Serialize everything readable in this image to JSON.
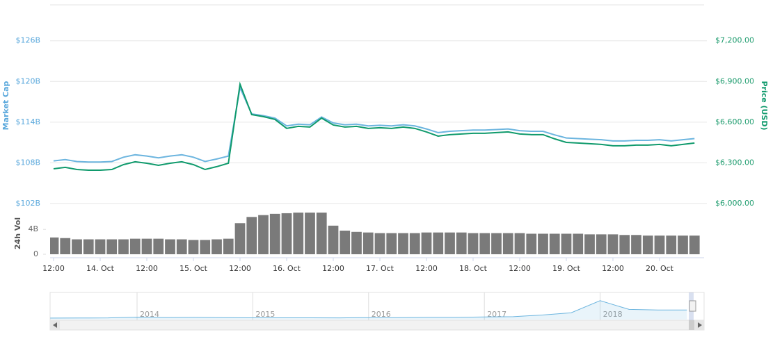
{
  "chart_data": [
    {
      "type": "line",
      "ylabel": "Market Cap",
      "y2label": "Price (USD)",
      "categories": [
        "12:00",
        null,
        null,
        null,
        "14. Oct",
        null,
        null,
        null,
        "12:00",
        null,
        null,
        null,
        "15. Oct",
        null,
        null,
        null,
        "12:00",
        null,
        null,
        null,
        "16. Oct",
        null,
        null,
        null,
        "12:00",
        null,
        null,
        null,
        "17. Oct",
        null,
        null,
        null,
        "12:00",
        null,
        null,
        null,
        "18. Oct",
        null,
        null,
        null,
        "12:00",
        null,
        null,
        null,
        "19. Oct",
        null,
        null,
        null,
        "12:00",
        null,
        null,
        null,
        "20. Oct",
        null,
        null,
        null
      ],
      "series": [
        {
          "name": "Market Cap",
          "color": "#6cb5df",
          "axis": "y",
          "values": [
            108.29,
            108.48,
            108.2,
            108.12,
            108.12,
            108.2,
            108.83,
            109.19,
            109.0,
            108.74,
            109.0,
            109.19,
            108.83,
            108.2,
            108.57,
            109.0,
            119.09,
            115.22,
            114.96,
            114.59,
            113.45,
            113.71,
            113.62,
            114.77,
            113.88,
            113.62,
            113.71,
            113.45,
            113.54,
            113.45,
            113.62,
            113.45,
            113.0,
            112.46,
            112.65,
            112.74,
            112.83,
            112.83,
            112.91,
            113.0,
            112.74,
            112.65,
            112.65,
            112.12,
            111.67,
            111.58,
            111.49,
            111.41,
            111.23,
            111.23,
            111.32,
            111.32,
            111.41,
            111.23,
            111.41,
            111.58
          ]
        },
        {
          "name": "Price (USD)",
          "color": "#0f9a6c",
          "axis": "y2",
          "values": [
            6256,
            6267,
            6251,
            6246,
            6246,
            6251,
            6287,
            6308,
            6297,
            6282,
            6297,
            6308,
            6287,
            6251,
            6272,
            6297,
            6880,
            6656,
            6641,
            6620,
            6554,
            6569,
            6564,
            6630,
            6579,
            6564,
            6569,
            6554,
            6559,
            6554,
            6564,
            6554,
            6528,
            6497,
            6508,
            6513,
            6518,
            6518,
            6523,
            6528,
            6513,
            6508,
            6508,
            6477,
            6451,
            6446,
            6441,
            6436,
            6426,
            6426,
            6431,
            6431,
            6436,
            6426,
            6436,
            6446
          ]
        }
      ],
      "ylim": [
        102,
        131.3
      ],
      "yticks": [
        {
          "value": 102,
          "label": "$102B"
        },
        {
          "value": 108,
          "label": "$108B"
        },
        {
          "value": 114,
          "label": "$114B"
        },
        {
          "value": 120,
          "label": "$120B"
        },
        {
          "value": 126,
          "label": "$126B"
        }
      ],
      "y2lim": [
        6000,
        7465
      ],
      "y2ticks": [
        {
          "value": 6000,
          "label": "$6,000.00"
        },
        {
          "value": 6300,
          "label": "$6,300.00"
        },
        {
          "value": 6600,
          "label": "$6,600.00"
        },
        {
          "value": 6900,
          "label": "$6,900.00"
        },
        {
          "value": 7200,
          "label": "$7,200.00"
        }
      ],
      "grid": true
    },
    {
      "type": "bar",
      "ylabel": "24h Vol",
      "color": "#7a7a7a",
      "values": [
        2.7,
        2.6,
        2.4,
        2.4,
        2.4,
        2.4,
        2.4,
        2.5,
        2.5,
        2.5,
        2.4,
        2.4,
        2.3,
        2.3,
        2.4,
        2.5,
        5.0,
        6.0,
        6.3,
        6.5,
        6.6,
        6.7,
        6.7,
        6.7,
        4.6,
        3.8,
        3.6,
        3.5,
        3.4,
        3.4,
        3.4,
        3.4,
        3.5,
        3.5,
        3.5,
        3.5,
        3.4,
        3.4,
        3.4,
        3.4,
        3.4,
        3.3,
        3.3,
        3.3,
        3.3,
        3.3,
        3.2,
        3.2,
        3.2,
        3.1,
        3.1,
        3.0,
        3.0,
        3.0,
        3.0,
        3.0
      ],
      "ylim": [
        0,
        7.6
      ],
      "yticks": [
        0,
        {
          "value": 4,
          "label": "4B"
        }
      ]
    },
    {
      "type": "area",
      "color": "#6cb5df",
      "categories": [
        null,
        null,
        null,
        "2014",
        null,
        null,
        null,
        "2015",
        null,
        null,
        null,
        "2016",
        null,
        null,
        null,
        "2017",
        null,
        null,
        null,
        "2018",
        null,
        null,
        null
      ],
      "values": [
        100,
        120,
        200,
        800,
        500,
        600,
        400,
        300,
        250,
        250,
        230,
        430,
        430,
        650,
        600,
        1000,
        1200,
        2500,
        4300,
        14000,
        7000,
        6500,
        6500
      ],
      "ylim": [
        0,
        20000
      ]
    }
  ]
}
